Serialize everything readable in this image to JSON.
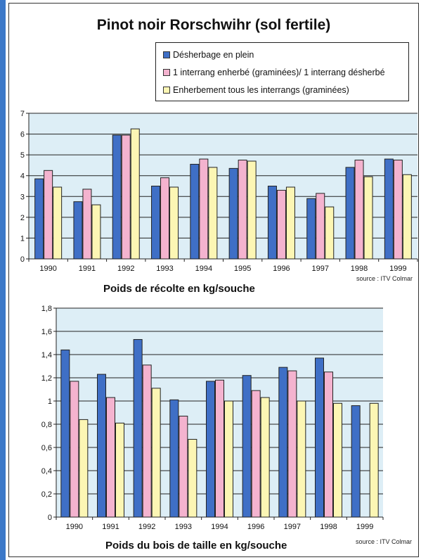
{
  "header": {
    "title": "Pinot noir Rorschwihr (sol fertile)"
  },
  "colors": {
    "series": [
      "#3f6fc6",
      "#f4b3cf",
      "#fcf6b4"
    ],
    "plot_bg": "#ddeef6",
    "frame_accent": "#3b78c8"
  },
  "legend": [
    "Désherbage en plein",
    "1 interrang enherbé (graminées)/ 1 interrang désherbé",
    "Enherbement tous les interrangs (graminées)"
  ],
  "chart_data": [
    {
      "type": "bar",
      "title": "Poids de récolte en kg/souche",
      "source": "source : ITV Colmar",
      "categories": [
        "1990",
        "1991",
        "1992",
        "1993",
        "1994",
        "1995",
        "1996",
        "1997",
        "1998",
        "1999"
      ],
      "yticks": [
        "0",
        "1",
        "2",
        "3",
        "4",
        "5",
        "6",
        "7"
      ],
      "ylim": [
        0,
        7
      ],
      "grid": true,
      "series": [
        {
          "name": "Désherbage en plein",
          "values": [
            3.85,
            2.75,
            5.95,
            3.5,
            4.55,
            4.35,
            3.5,
            2.9,
            4.4,
            4.8
          ]
        },
        {
          "name": "1 interrang enherbé (graminées)/ 1 interrang désherbé",
          "values": [
            4.25,
            3.35,
            5.95,
            3.9,
            4.8,
            4.75,
            3.3,
            3.15,
            4.75,
            4.75
          ]
        },
        {
          "name": "Enherbement tous les interrangs (graminées)",
          "values": [
            3.45,
            2.6,
            6.25,
            3.45,
            4.4,
            4.7,
            3.45,
            2.5,
            3.95,
            4.05
          ]
        }
      ]
    },
    {
      "type": "bar",
      "title": "Poids du bois de taille en kg/souche",
      "source": "source : ITV Colmar",
      "categories": [
        "1990",
        "1991",
        "1992",
        "1993",
        "1994",
        "1996",
        "1997",
        "1998",
        "1999"
      ],
      "yticks": [
        "0",
        "0,2",
        "0,4",
        "0,6",
        "0,8",
        "1",
        "1,2",
        "1,4",
        "1,6",
        "1,8"
      ],
      "ylim": [
        0,
        1.8
      ],
      "grid": true,
      "series": [
        {
          "name": "Désherbage en plein",
          "values": [
            1.44,
            1.23,
            1.53,
            1.01,
            1.17,
            1.22,
            1.29,
            1.37,
            0.96
          ]
        },
        {
          "name": "1 interrang enherbé (graminées)/ 1 interrang désherbé",
          "values": [
            1.17,
            1.03,
            1.31,
            0.87,
            1.18,
            1.09,
            1.26,
            1.25,
            null
          ]
        },
        {
          "name": "Enherbement tous les interrangs (graminées)",
          "values": [
            0.84,
            0.81,
            1.11,
            0.67,
            1.0,
            1.03,
            1.0,
            0.98,
            0.98
          ]
        }
      ]
    }
  ]
}
